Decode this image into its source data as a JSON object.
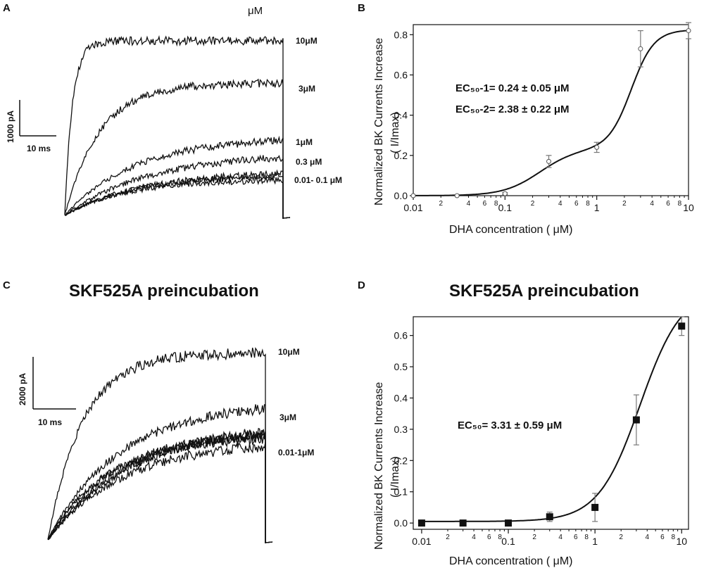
{
  "colors": {
    "ink": "#111111",
    "background": "#ffffff",
    "errorbar": "#777777"
  },
  "panels": {
    "A": {
      "letter": "A",
      "unit_header": "μM",
      "scale_bar": {
        "vertical_label": "1000 pA",
        "horizontal_label": "10 ms"
      },
      "trace_labels": [
        "10μM",
        "3μM",
        "1μM",
        "0.3 μM",
        "0.01- 0.1 μM"
      ],
      "traces": [
        {
          "label": "10μM",
          "plateau_fraction": 0.87,
          "rise": "fast"
        },
        {
          "label": "3μM",
          "plateau_fraction": 0.66,
          "rise": "medium"
        },
        {
          "label": "1μM",
          "plateau_fraction": 0.39,
          "rise": "slow"
        },
        {
          "label": "0.3 μM",
          "plateau_fraction": 0.31,
          "rise": "slow"
        },
        {
          "label": "0.01- 0.1 μM",
          "plateau_fraction": 0.22,
          "rise": "slow"
        }
      ]
    },
    "C": {
      "letter": "C",
      "title": "SKF525A preincubation",
      "scale_bar": {
        "vertical_label": "2000 pA",
        "horizontal_label": "10 ms"
      },
      "trace_labels": [
        "10μM",
        "3μM",
        "0.01-1μM"
      ],
      "traces": [
        {
          "label": "10μM",
          "plateau_fraction": 0.95
        },
        {
          "label": "3μM",
          "plateau_fraction": 0.7
        },
        {
          "label": "0.01-1μM",
          "plateau_fraction": 0.57
        }
      ]
    }
  },
  "chart_data": [
    {
      "panel": "B",
      "letter": "B",
      "type": "scatter",
      "title": "",
      "xlabel": "DHA concentration ( μM)",
      "ylabel": "Normalized BK Currents Increase",
      "ylabel2": "( I/Imax)",
      "xscale": "log",
      "xlim": [
        0.01,
        10
      ],
      "ylim": [
        0,
        0.85
      ],
      "yticks": [
        0.0,
        0.2,
        0.4,
        0.6,
        0.8
      ],
      "ytick_labels": [
        "0.0",
        "0.2",
        "0.4",
        "0.6",
        "0.8"
      ],
      "xticks": [
        0.01,
        0.1,
        1,
        10
      ],
      "xtick_labels": [
        "0.01",
        "0.1",
        "1",
        "10"
      ],
      "minor_tick_labels": [
        "2",
        "4",
        "6",
        "8"
      ],
      "marker": "open-circle",
      "x": [
        0.01,
        0.03,
        0.1,
        0.3,
        1,
        3,
        10
      ],
      "y": [
        0.0,
        0.0,
        0.01,
        0.17,
        0.24,
        0.73,
        0.82
      ],
      "err": [
        0.0,
        0.0,
        0.005,
        0.03,
        0.025,
        0.09,
        0.04
      ],
      "fit": {
        "model": "biphasic-hill",
        "top1": 0.235,
        "ec50_1": 0.24,
        "n1": 2.2,
        "top2": 0.59,
        "ec50_2": 2.38,
        "n2": 3.5
      },
      "annotations": [
        "EC₅₀-1= 0.24 ± 0.05 μM",
        "EC₅₀-2= 2.38 ± 0.22 μM"
      ]
    },
    {
      "panel": "D",
      "letter": "D",
      "type": "scatter",
      "title": "SKF525A preincubation",
      "xlabel": "DHA concentration ( μM)",
      "ylabel": "Normalized BK Currents Increase",
      "ylabel2": "( I/Imax)",
      "xscale": "log",
      "xlim": [
        0.008,
        12
      ],
      "ylim": [
        -0.02,
        0.66
      ],
      "yticks": [
        0.0,
        0.1,
        0.2,
        0.3,
        0.4,
        0.5,
        0.6
      ],
      "ytick_labels": [
        "0.0",
        "0.1",
        "0.2",
        "0.3",
        "0.4",
        "0.5",
        "0.6"
      ],
      "xticks": [
        0.01,
        0.1,
        1,
        10
      ],
      "xtick_labels": [
        "0.01",
        "0.1",
        "1",
        "10"
      ],
      "minor_tick_labels": [
        "2",
        "4",
        "6",
        "8"
      ],
      "marker": "filled-square",
      "x": [
        0.01,
        0.03,
        0.1,
        0.3,
        1,
        3,
        10
      ],
      "y": [
        0.0,
        0.0,
        0.0,
        0.02,
        0.05,
        0.33,
        0.63
      ],
      "err": [
        0.005,
        0.005,
        0.005,
        0.015,
        0.045,
        0.08,
        0.03
      ],
      "fit": {
        "model": "hill",
        "bottom": 0.005,
        "top": 0.75,
        "ec50": 3.31,
        "n": 1.8
      },
      "annotations": [
        "EC₅₀= 3.31 ± 0.59 μM"
      ]
    }
  ]
}
